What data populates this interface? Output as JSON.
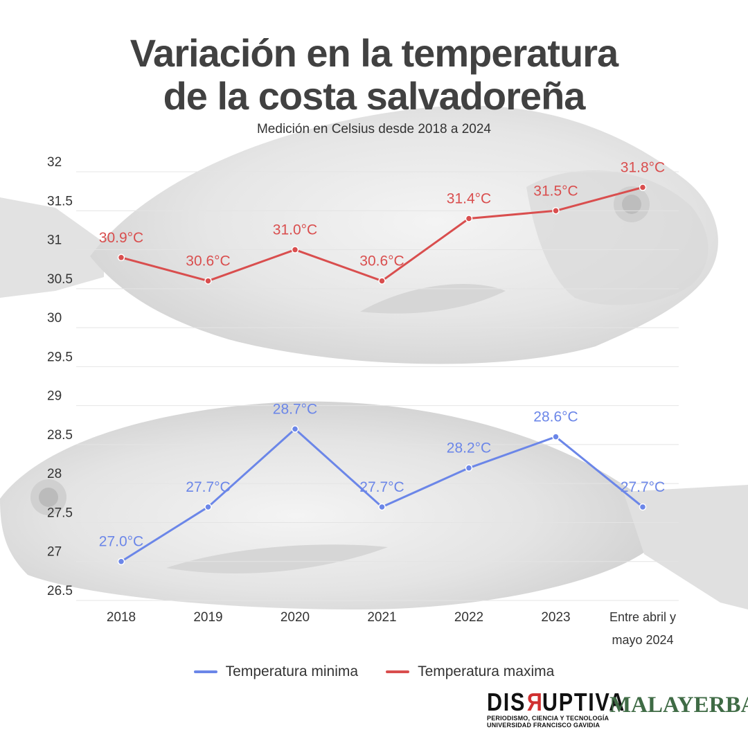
{
  "title_line_1": "Variación en la temperatura",
  "title_line_2": "de la costa salvadoreña",
  "subtitle": "Medición en Celsius desde 2018 a 2024",
  "colors": {
    "minima": "#6b86e8",
    "maxima": "#d94e4e",
    "grid": "#e4e4e4",
    "axis_text": "#333333"
  },
  "chart_data": {
    "type": "line",
    "categories": [
      "2018",
      "2019",
      "2020",
      "2021",
      "2022",
      "2023",
      "Entre abril y mayo 2024"
    ],
    "y_ticks": [
      "32",
      "31.5",
      "31",
      "30.5",
      "30",
      "29.5",
      "29",
      "28.5",
      "28",
      "27.5",
      "27",
      "26.5"
    ],
    "ylim": [
      26.5,
      32
    ],
    "grid": true,
    "legend_position": "bottom",
    "series": [
      {
        "name": "Temperatura maxima",
        "color": "#d94e4e",
        "values": [
          30.9,
          30.6,
          31.0,
          30.6,
          31.4,
          31.5,
          31.8
        ],
        "labels": [
          "30.9°C",
          "30.6°C",
          "31.0°C",
          "30.6°C",
          "31.4°C",
          "31.5°C",
          "31.8°C"
        ]
      },
      {
        "name": "Temperatura minima",
        "color": "#6b86e8",
        "values": [
          27.0,
          27.7,
          28.7,
          27.7,
          28.2,
          28.6,
          27.7
        ],
        "labels": [
          "27.0°C",
          "27.7°C",
          "28.7°C",
          "27.7°C",
          "28.2°C",
          "28.6°C",
          "27.7°C"
        ]
      }
    ]
  },
  "legend": {
    "minima_label": "Temperatura minima",
    "maxima_label": "Temperatura maxima"
  },
  "logos": {
    "disruptiva_brand_pre": "DIS",
    "disruptiva_brand_r": "R",
    "disruptiva_brand_post": "UPTIVA",
    "disruptiva_sub_1": "PERIODISMO, CIENCIA Y TECNOLOGÍA",
    "disruptiva_sub_2": "UNIVERSIDAD FRANCISCO GAVIDIA",
    "malayerba": "MALAYERBA"
  }
}
